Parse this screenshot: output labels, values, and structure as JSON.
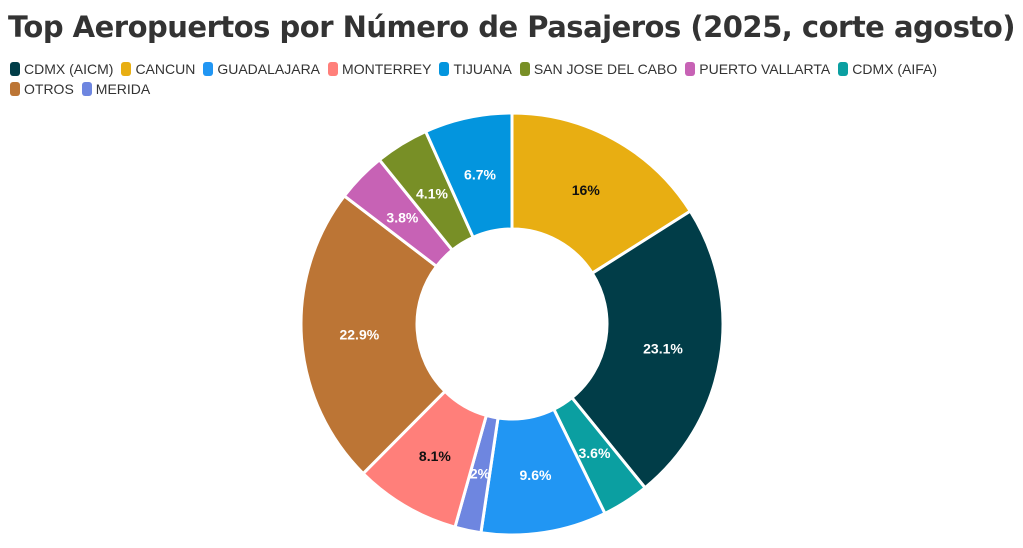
{
  "chart_data": {
    "type": "pie",
    "variant": "donut",
    "title": "Top Aeropuertos por Número de Pasajeros (2025, corte agosto)",
    "legend_position": "top-left",
    "legend": [
      "CDMX (AICM)",
      "CANCUN",
      "GUADALAJARA",
      "MONTERREY",
      "TIJUANA",
      "SAN JOSE DEL CABO",
      "PUERTO VALLARTA",
      "CDMX (AIFA)",
      "OTROS",
      "MERIDA"
    ],
    "slices": [
      {
        "name": "CANCUN",
        "value": 16,
        "label": "16%",
        "color": "#E8AE12",
        "label_color": "#111111"
      },
      {
        "name": "CDMX (AICM)",
        "value": 23.1,
        "label": "23.1%",
        "color": "#013D48",
        "label_color": "#ffffff"
      },
      {
        "name": "CDMX (AIFA)",
        "value": 3.6,
        "label": "3.6%",
        "color": "#0B9FA1",
        "label_color": "#ffffff"
      },
      {
        "name": "GUADALAJARA",
        "value": 9.6,
        "label": "9.6%",
        "color": "#2196F3",
        "label_color": "#ffffff"
      },
      {
        "name": "MERIDA",
        "value": 2,
        "label": "2%",
        "color": "#6E86E0",
        "label_color": "#ffffff"
      },
      {
        "name": "MONTERREY",
        "value": 8.1,
        "label": "8.1%",
        "color": "#FF7F7A",
        "label_color": "#111111"
      },
      {
        "name": "OTROS",
        "value": 22.9,
        "label": "22.9%",
        "color": "#BC7535",
        "label_color": "#ffffff"
      },
      {
        "name": "PUERTO VALLARTA",
        "value": 3.8,
        "label": "3.8%",
        "color": "#C762B5",
        "label_color": "#ffffff"
      },
      {
        "name": "SAN JOSE DEL CABO",
        "value": 4.1,
        "label": "4.1%",
        "color": "#788F26",
        "label_color": "#ffffff"
      },
      {
        "name": "TIJUANA",
        "value": 6.7,
        "label": "6.7%",
        "color": "#0395DE",
        "label_color": "#ffffff"
      }
    ]
  }
}
